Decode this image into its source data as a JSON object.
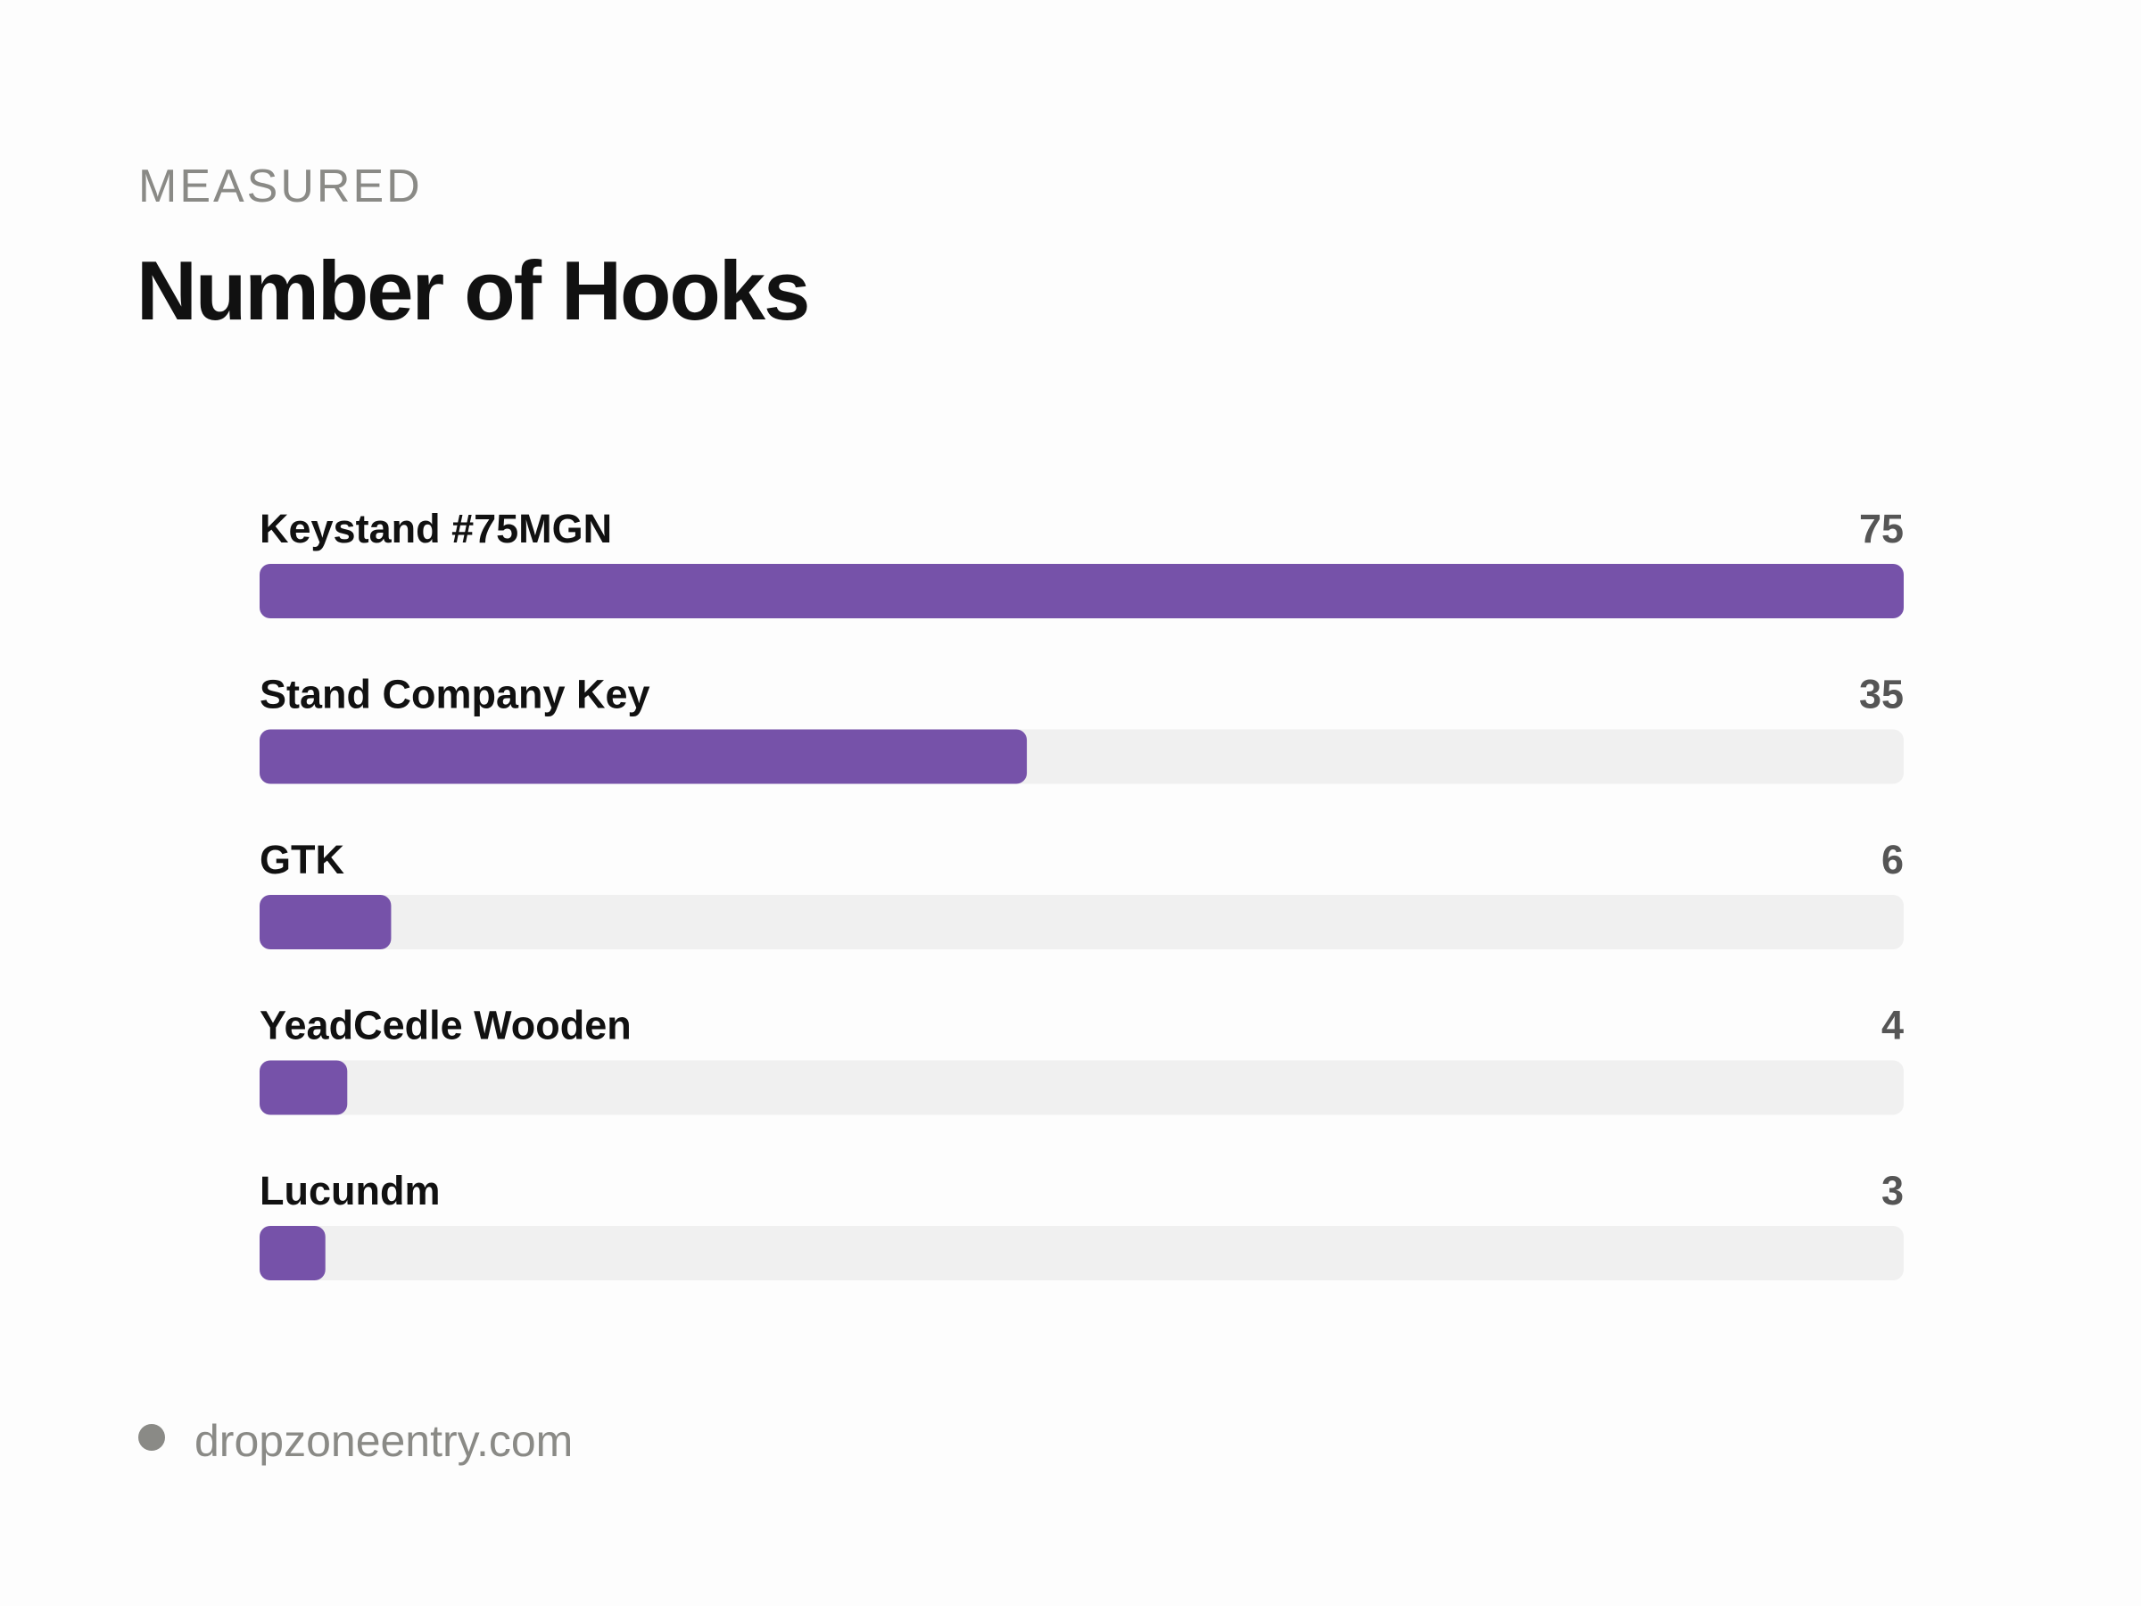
{
  "chart_data": {
    "type": "bar",
    "orientation": "horizontal",
    "kicker": "MEASURED",
    "title": "Number of Hooks",
    "categories": [
      "Keystand #75MGN",
      "Stand Company Key",
      "GTK",
      "YeadCedle Wooden",
      "Lucundm"
    ],
    "values": [
      75,
      35,
      6,
      4,
      3
    ],
    "xlim": [
      0,
      75
    ],
    "color": "#7652a9",
    "footer": "dropzoneentry.com"
  }
}
